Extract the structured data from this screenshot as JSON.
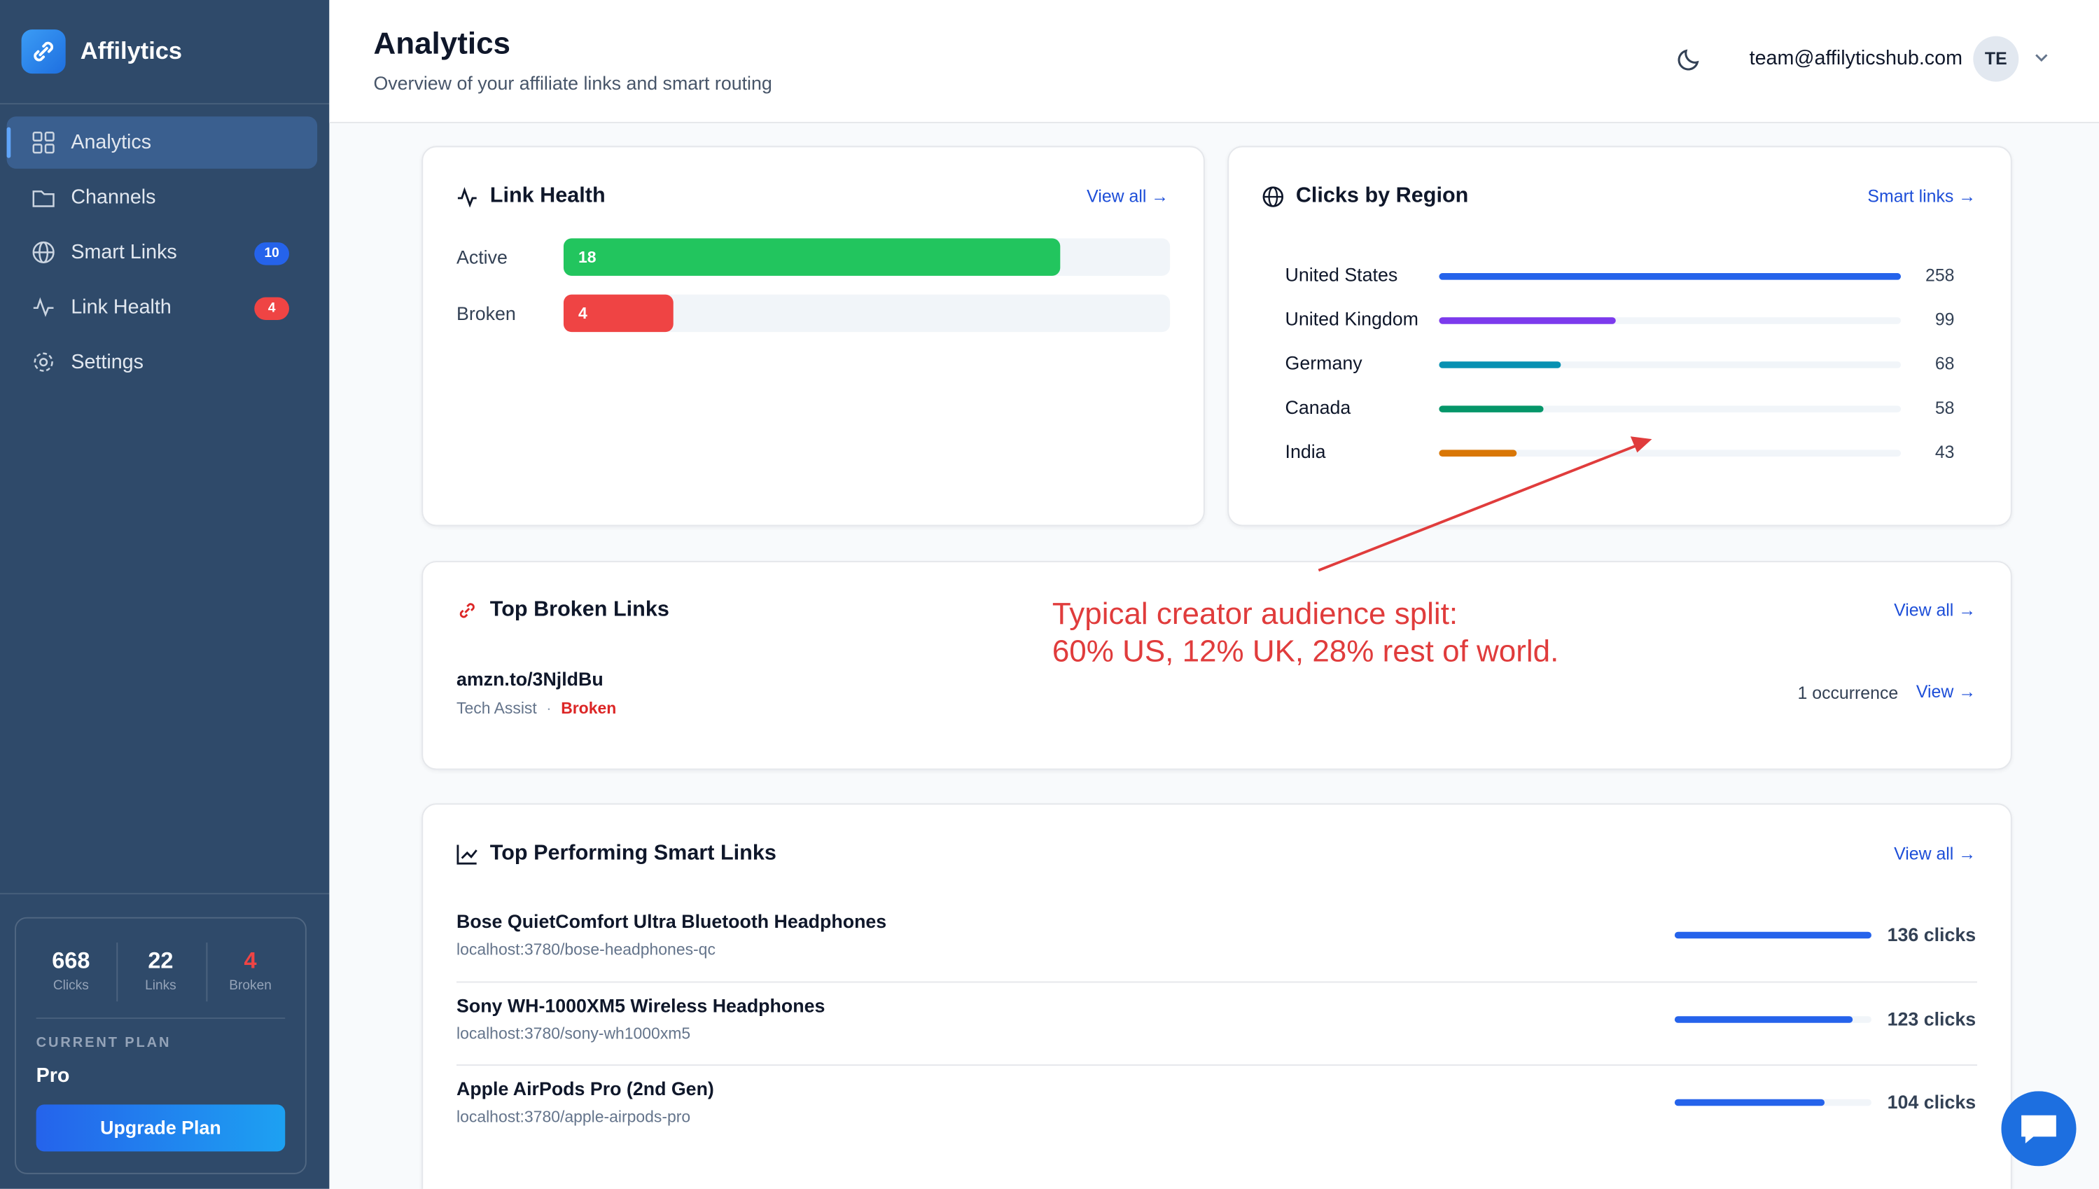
{
  "sidebar": {
    "brand": "Affilytics",
    "nav": [
      {
        "label": "Analytics"
      },
      {
        "label": "Channels"
      },
      {
        "label": "Smart Links",
        "badge": 10
      },
      {
        "label": "Link Health",
        "badge": 4
      },
      {
        "label": "Settings"
      }
    ],
    "stats": [
      {
        "value": 668,
        "label": "Clicks"
      },
      {
        "value": 22,
        "label": "Links"
      },
      {
        "value": 4,
        "label": "Broken"
      }
    ],
    "plan_label": "CURRENT PLAN",
    "plan": "Pro",
    "upgrade": "Upgrade Plan"
  },
  "header": {
    "title": "Analytics",
    "subtitle": "Overview of your affiliate links and smart routing",
    "email": "team@affilyticshub.com",
    "initials": "TE"
  },
  "link_health": {
    "title": "Link Health",
    "action": "View all →",
    "categories": [
      "Active",
      "Broken"
    ],
    "values": [
      18,
      4
    ],
    "colors": [
      "#22c55e",
      "#ef4444"
    ]
  },
  "regions": {
    "title": "Clicks by Region",
    "action": "Smart links →",
    "categories": [
      "United States",
      "United Kingdom",
      "Germany",
      "Canada",
      "India"
    ],
    "values": [
      258,
      99,
      68,
      58,
      43
    ],
    "colors": [
      "#2563eb",
      "#7c3aed",
      "#0891b2",
      "#059669",
      "#d97706"
    ]
  },
  "broken_links": {
    "title": "Top Broken Links",
    "action": "View all →",
    "items": [
      {
        "url": "amzn.to/3NjldBu",
        "channel": "Tech Assist",
        "status": "Broken",
        "count": "1 occurrence",
        "action": "View →"
      }
    ]
  },
  "annotation": [
    "Typical creator audience split:",
    "60% US, 12% UK, 28% rest of world."
  ],
  "top_links": {
    "title": "Top Performing Smart Links",
    "action": "View all →",
    "items": [
      {
        "name": "Bose QuietComfort Ultra Bluetooth Headphones",
        "url": "localhost:3780/bose-headphones-qc"
      },
      {
        "name": "Sony WH-1000XM5 Wireless Headphones",
        "url": "localhost:3780/sony-wh1000xm5"
      },
      {
        "name": "Apple AirPods Pro (2nd Gen)",
        "url": "localhost:3780/apple-airpods-pro"
      }
    ],
    "values": [
      136,
      123,
      104
    ],
    "value_labels": [
      "136 clicks",
      "123 clicks",
      "104 clicks"
    ],
    "color": "#2563eb"
  }
}
